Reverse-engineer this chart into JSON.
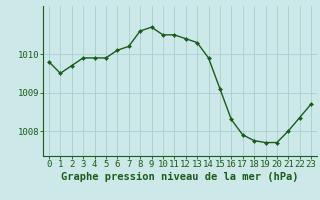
{
  "x": [
    0,
    1,
    2,
    3,
    4,
    5,
    6,
    7,
    8,
    9,
    10,
    11,
    12,
    13,
    14,
    15,
    16,
    17,
    18,
    19,
    20,
    21,
    22,
    23
  ],
  "y": [
    1009.8,
    1009.5,
    1009.7,
    1009.9,
    1009.9,
    1009.9,
    1010.1,
    1010.2,
    1010.6,
    1010.7,
    1010.5,
    1010.5,
    1010.4,
    1010.3,
    1009.9,
    1009.1,
    1008.3,
    1007.9,
    1007.75,
    1007.7,
    1007.7,
    1008.0,
    1008.35,
    1008.7
  ],
  "ylabel_ticks": [
    1008,
    1009,
    1010
  ],
  "ylabel_tick_labels": [
    "1008",
    "1009",
    "1010"
  ],
  "xlim": [
    -0.5,
    23.5
  ],
  "ylim": [
    1007.35,
    1011.25
  ],
  "bg_color": "#cce8e8",
  "grid_color": "#aad0d0",
  "line_color": "#1a5c1a",
  "marker_color": "#1a5c1a",
  "tick_label_color": "#1a5c1a",
  "title_color": "#1a5c1a",
  "title_text": "Graphe pression niveau de la mer (hPa)",
  "title_fontsize": 7.5,
  "tick_fontsize": 6.5,
  "figsize": [
    3.2,
    2.0
  ],
  "dpi": 100
}
